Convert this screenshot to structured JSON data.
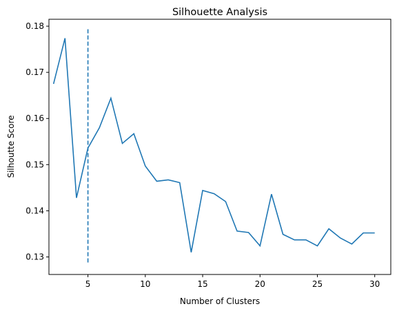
{
  "chart_data": {
    "type": "line",
    "title": "Silhouette Analysis",
    "xlabel": "Number of Clusters",
    "ylabel": "Silhoutte Score",
    "xlim": [
      1.6,
      31.4
    ],
    "ylim": [
      0.1262,
      0.1815
    ],
    "xticks": [
      5,
      10,
      15,
      20,
      25,
      30
    ],
    "yticks": [
      0.13,
      0.14,
      0.15,
      0.16,
      0.17,
      0.18
    ],
    "grid": false,
    "legend": "none",
    "series": [
      {
        "color": "#1f77b4",
        "x": [
          2,
          3,
          4,
          5,
          6,
          7,
          8,
          9,
          10,
          11,
          12,
          13,
          14,
          15,
          16,
          17,
          18,
          19,
          20,
          21,
          22,
          23,
          24,
          25,
          26,
          27,
          28,
          29,
          30
        ],
        "y": [
          0.1675,
          0.1774,
          0.1428,
          0.1536,
          0.158,
          0.1644,
          0.1546,
          0.1567,
          0.1497,
          0.1464,
          0.1467,
          0.1461,
          0.131,
          0.1444,
          0.1437,
          0.142,
          0.1356,
          0.1353,
          0.1324,
          0.1436,
          0.1349,
          0.1337,
          0.1337,
          0.1324,
          0.1361,
          0.1341,
          0.1328,
          0.1352,
          0.1352
        ]
      }
    ],
    "vline": {
      "x": 5,
      "ymin": 0.1288,
      "ymax": 0.1797,
      "style": "dashed",
      "color": "#1f77b4"
    }
  }
}
